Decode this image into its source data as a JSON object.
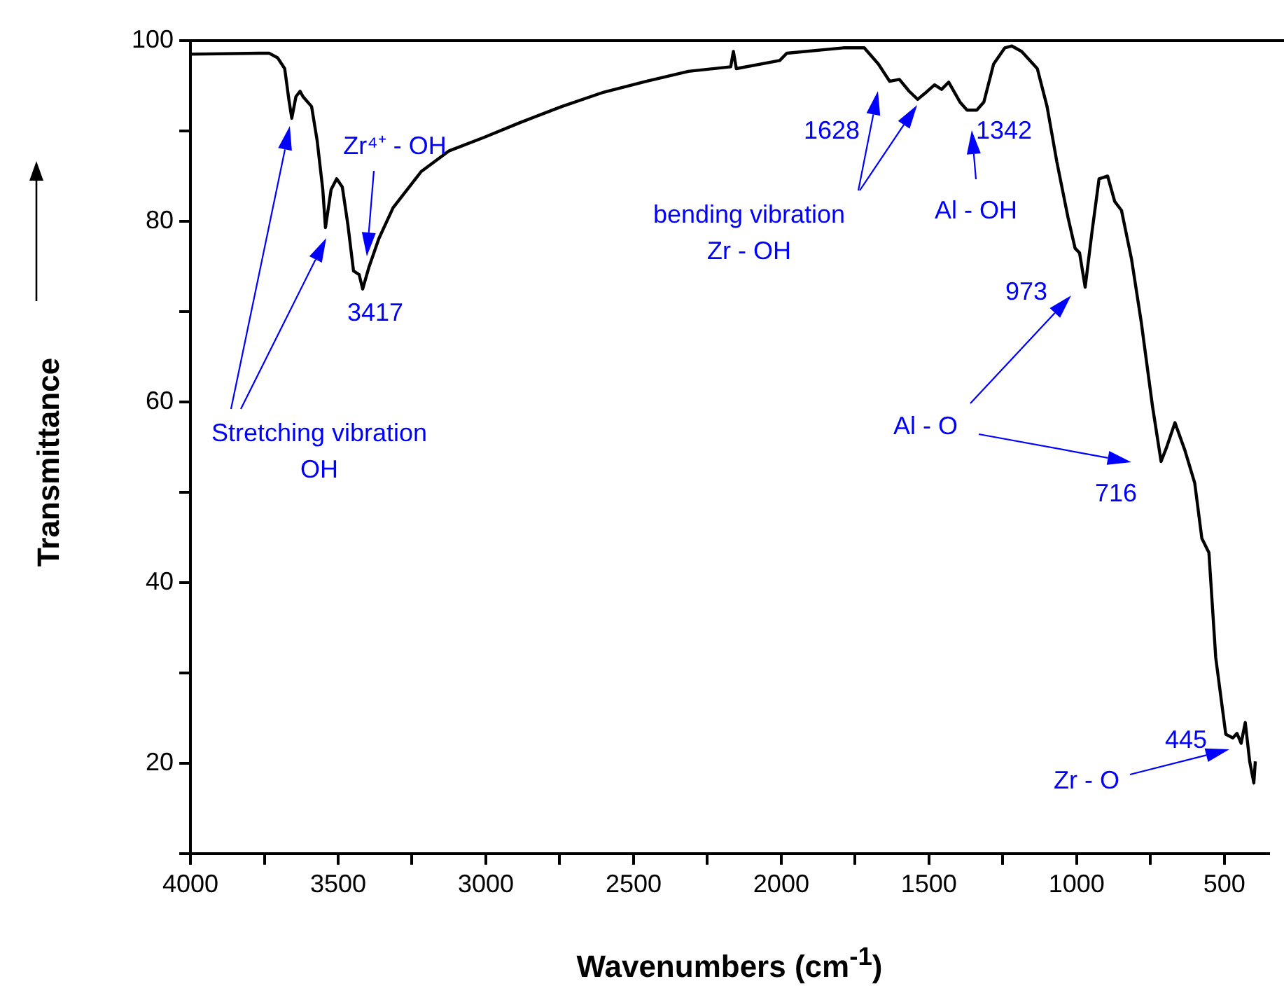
{
  "chart_data": {
    "type": "line",
    "xlabel": "Wavenumbers (cm$^{-1}$)",
    "ylabel": "Transmittance",
    "xlim": [
      4000,
      350
    ],
    "ylim": [
      10,
      100
    ],
    "xticks": [
      4000,
      {
        "value": 3750,
        "label": null
      },
      3500,
      {
        "value": 3250,
        "label": null
      },
      3000,
      {
        "value": 2750,
        "label": null
      },
      2500,
      {
        "value": 2250,
        "label": null
      },
      2000,
      {
        "value": 1750,
        "label": null
      },
      1500,
      {
        "value": 1250,
        "label": null
      },
      1000,
      {
        "value": 750,
        "label": null
      },
      500
    ],
    "yticks": [
      {
        "value": 10,
        "label": null
      },
      20,
      {
        "value": 30,
        "label": null
      },
      40,
      {
        "value": 50,
        "label": null
      },
      60,
      {
        "value": 70,
        "label": null
      },
      80,
      {
        "value": 90,
        "label": null
      },
      100
    ],
    "grid": false,
    "legend": false,
    "marker": "none",
    "line_style": "solid",
    "series": [
      {
        "color": "#000000",
        "x": [
          4000,
          3767,
          3733,
          3705,
          3681,
          3667,
          3657,
          3643,
          3629,
          3619,
          3590,
          3571,
          3552,
          3543,
          3524,
          3505,
          3486,
          3467,
          3448,
          3429,
          3417,
          3395,
          3362,
          3314,
          3219,
          3124,
          3005,
          2886,
          2743,
          2600,
          2457,
          2314,
          2171,
          2162,
          2152,
          2005,
          1981,
          1790,
          1719,
          1671,
          1633,
          1600,
          1567,
          1538,
          1505,
          1481,
          1457,
          1433,
          1395,
          1371,
          1338,
          1314,
          1281,
          1243,
          1219,
          1186,
          1133,
          1100,
          1067,
          1029,
          1005,
          990,
          971,
          948,
          924,
          895,
          871,
          848,
          814,
          781,
          743,
          714,
          695,
          667,
          633,
          600,
          576,
          552,
          529,
          495,
          471,
          457,
          443,
          429,
          414,
          400,
          395
        ],
        "values": [
          98.5,
          98.6,
          98.6,
          98.1,
          96.9,
          93.5,
          91.4,
          93.8,
          94.4,
          93.8,
          92.7,
          88.9,
          83.5,
          79.3,
          83.5,
          84.7,
          83.8,
          79.6,
          74.5,
          74.1,
          72.5,
          75.0,
          78.1,
          81.5,
          85.5,
          87.8,
          89.3,
          90.9,
          92.7,
          94.3,
          95.5,
          96.6,
          97.1,
          98.8,
          96.9,
          97.8,
          98.6,
          99.2,
          99.2,
          97.4,
          95.5,
          95.7,
          94.4,
          93.5,
          94.4,
          95.1,
          94.6,
          95.4,
          93.2,
          92.3,
          92.3,
          93.2,
          97.4,
          99.2,
          99.4,
          98.8,
          96.9,
          92.7,
          86.6,
          80.4,
          77.0,
          76.5,
          72.7,
          78.8,
          84.7,
          85.0,
          82.2,
          81.2,
          75.8,
          68.8,
          59.5,
          53.4,
          55.0,
          57.7,
          54.6,
          51.0,
          44.9,
          43.3,
          31.7,
          23.2,
          22.8,
          23.3,
          22.2,
          24.5,
          20.2,
          17.8,
          20.2
        ]
      }
    ],
    "annotations": [
      "Stretching vibration\nOH",
      "Zr⁴⁺ - OH",
      "3417",
      "bending vibration\nZr - OH",
      "1628",
      "1342",
      "Al - OH",
      "973",
      "Al - O",
      "716",
      "445",
      "Zr - O"
    ]
  }
}
